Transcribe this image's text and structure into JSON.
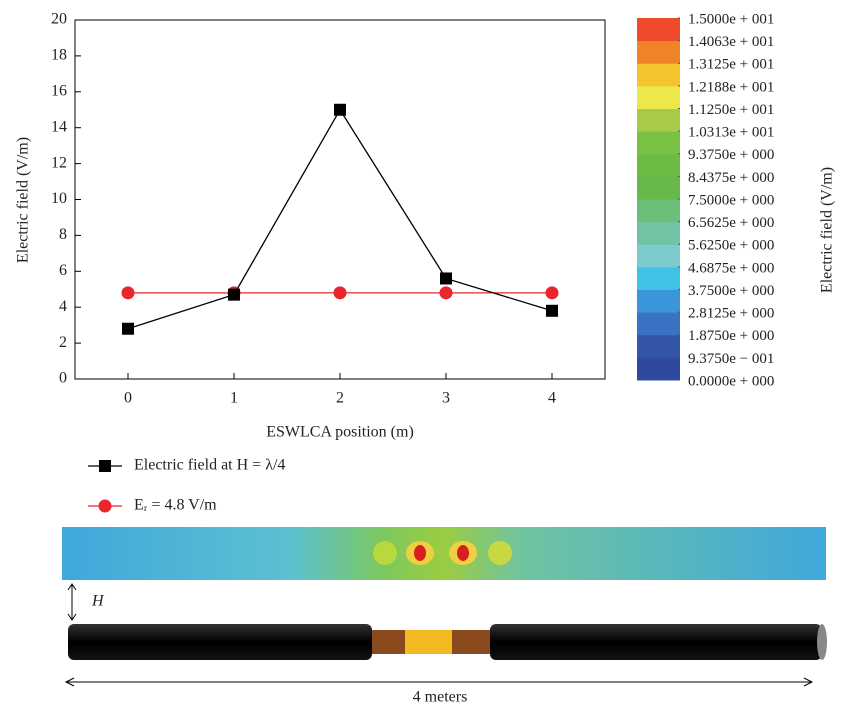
{
  "chart_data": {
    "type": "line",
    "x_label": "ESWLCA position (m)",
    "y_label": "Electric field (V/m)",
    "x": [
      0,
      1,
      2,
      3,
      4
    ],
    "xlim": [
      -0.5,
      4.5
    ],
    "xticks": [
      0,
      1,
      2,
      3,
      4
    ],
    "ylim": [
      0,
      20
    ],
    "yticks": [
      0,
      2,
      4,
      6,
      8,
      10,
      12,
      14,
      16,
      18,
      20
    ],
    "series": [
      {
        "name": "Electric field at H = λ/4",
        "color": "#000000",
        "marker": "square",
        "values": [
          2.8,
          4.7,
          15.0,
          5.6,
          3.8
        ]
      },
      {
        "name": "Eᵣ = 4.8 V/m",
        "color": "#e8262b",
        "marker": "circle",
        "values": [
          4.8,
          4.8,
          4.8,
          4.8,
          4.8
        ]
      }
    ],
    "colorbar": {
      "label": "Electric field (V/m)",
      "clim": [
        0,
        15
      ],
      "ticks": [
        {
          "value": 15,
          "label": "1.5000e + 001"
        },
        {
          "value": 14.063,
          "label": "1.4063e + 001"
        },
        {
          "value": 13.125,
          "label": "1.3125e + 001"
        },
        {
          "value": 12.188,
          "label": "1.2188e + 001"
        },
        {
          "value": 11.25,
          "label": "1.1250e + 001"
        },
        {
          "value": 10.313,
          "label": "1.0313e + 001"
        },
        {
          "value": 9.375,
          "label": "9.3750e + 000"
        },
        {
          "value": 8.4375,
          "label": "8.4375e + 000"
        },
        {
          "value": 7.5,
          "label": "7.5000e + 000"
        },
        {
          "value": 6.5625,
          "label": "6.5625e + 000"
        },
        {
          "value": 5.625,
          "label": "5.6250e + 000"
        },
        {
          "value": 4.6875,
          "label": "4.6875e + 000"
        },
        {
          "value": 3.75,
          "label": "3.7500e + 000"
        },
        {
          "value": 2.8125,
          "label": "2.8125e + 000"
        },
        {
          "value": 1.875,
          "label": "1.8750e + 000"
        },
        {
          "value": 0.9375,
          "label": "9.3750e − 001"
        },
        {
          "value": 0,
          "label": "0.0000e + 000"
        }
      ],
      "colors": [
        "#2e4a9c",
        "#3356a8",
        "#3a73c4",
        "#3c95d8",
        "#3fc2e6",
        "#7ccccf",
        "#70c3a3",
        "#6cbf78",
        "#66b94a",
        "#6cbb44",
        "#78c144",
        "#a7cb48",
        "#ece84a",
        "#f5c42e",
        "#f08328",
        "#ee4a2b"
      ]
    }
  },
  "diagram": {
    "height_label": "H",
    "length_label": "4 meters"
  }
}
